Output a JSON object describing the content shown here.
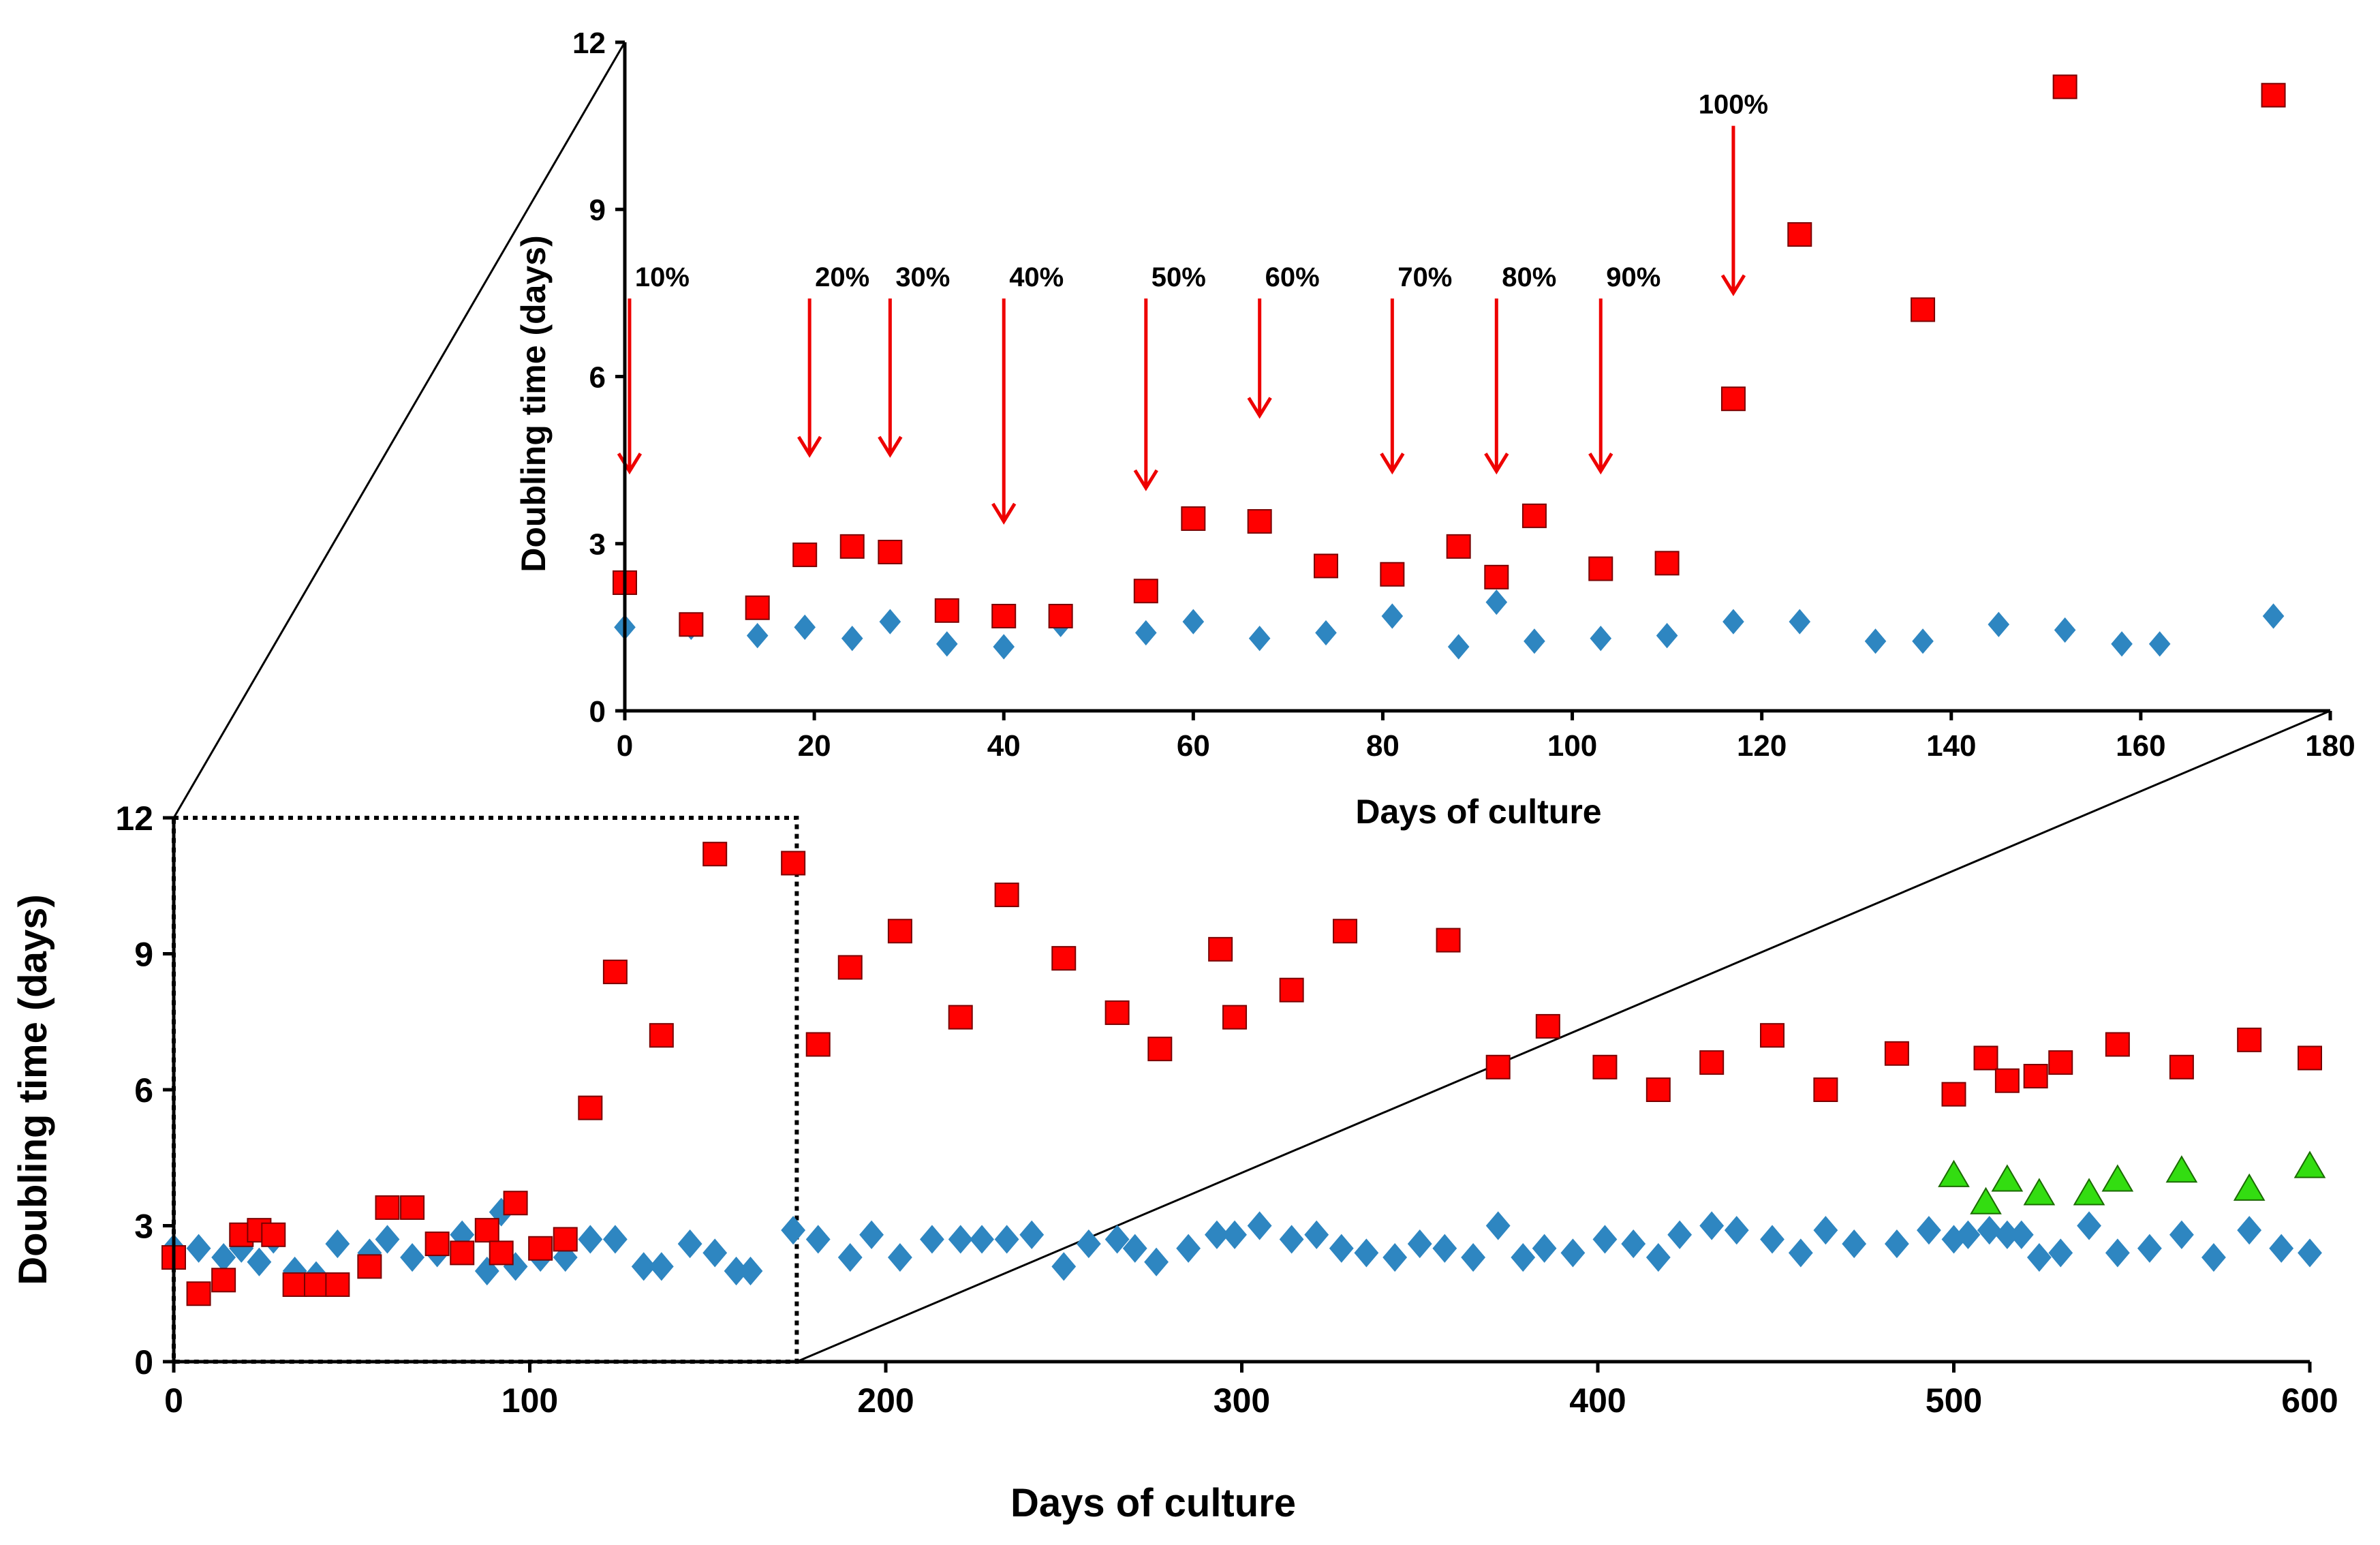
{
  "colors": {
    "series_a": "#2E86C1",
    "series_b": "#FF0000",
    "series_c": "#33DD11",
    "axis": "#000000",
    "arrow": "#EE0000"
  },
  "chart_data": [
    {
      "id": "main",
      "type": "scatter",
      "title": "",
      "xlabel": "Days of culture",
      "ylabel": "Doubling time (days)",
      "xlim": [
        0,
        600
      ],
      "ylim": [
        0,
        12
      ],
      "xticks": [
        0,
        100,
        200,
        300,
        400,
        500,
        600
      ],
      "yticks": [
        0,
        3,
        6,
        9,
        12
      ],
      "grid": false,
      "legend": "none",
      "zoom_box": {
        "x_range": [
          0,
          175
        ],
        "y_range": [
          0,
          12
        ]
      },
      "series": [
        {
          "name": "blue diamonds",
          "marker": "diamond",
          "color": "#2E86C1",
          "points": [
            [
              0,
              2.5
            ],
            [
              7,
              2.5
            ],
            [
              14,
              2.3
            ],
            [
              19,
              2.5
            ],
            [
              24,
              2.2
            ],
            [
              28,
              2.7
            ],
            [
              34,
              2.0
            ],
            [
              40,
              1.9
            ],
            [
              46,
              2.6
            ],
            [
              55,
              2.4
            ],
            [
              60,
              2.7
            ],
            [
              67,
              2.3
            ],
            [
              74,
              2.4
            ],
            [
              81,
              2.8
            ],
            [
              88,
              2.0
            ],
            [
              92,
              3.3
            ],
            [
              96,
              2.1
            ],
            [
              103,
              2.3
            ],
            [
              110,
              2.3
            ],
            [
              117,
              2.7
            ],
            [
              124,
              2.7
            ],
            [
              132,
              2.1
            ],
            [
              137,
              2.1
            ],
            [
              145,
              2.6
            ],
            [
              152,
              2.4
            ],
            [
              158,
              2.0
            ],
            [
              162,
              2.0
            ],
            [
              174,
              2.9
            ],
            [
              181,
              2.7
            ],
            [
              190,
              2.3
            ],
            [
              196,
              2.8
            ],
            [
              204,
              2.3
            ],
            [
              213,
              2.7
            ],
            [
              221,
              2.7
            ],
            [
              227,
              2.7
            ],
            [
              234,
              2.7
            ],
            [
              241,
              2.8
            ],
            [
              250,
              2.1
            ],
            [
              257,
              2.6
            ],
            [
              265,
              2.7
            ],
            [
              270,
              2.5
            ],
            [
              276,
              2.2
            ],
            [
              285,
              2.5
            ],
            [
              293,
              2.8
            ],
            [
              298,
              2.8
            ],
            [
              305,
              3.0
            ],
            [
              314,
              2.7
            ],
            [
              321,
              2.8
            ],
            [
              328,
              2.5
            ],
            [
              335,
              2.4
            ],
            [
              343,
              2.3
            ],
            [
              350,
              2.6
            ],
            [
              357,
              2.5
            ],
            [
              365,
              2.3
            ],
            [
              372,
              3.0
            ],
            [
              379,
              2.3
            ],
            [
              385,
              2.5
            ],
            [
              393,
              2.4
            ],
            [
              402,
              2.7
            ],
            [
              410,
              2.6
            ],
            [
              417,
              2.3
            ],
            [
              423,
              2.8
            ],
            [
              432,
              3.0
            ],
            [
              439,
              2.9
            ],
            [
              449,
              2.7
            ],
            [
              457,
              2.4
            ],
            [
              464,
              2.9
            ],
            [
              472,
              2.6
            ],
            [
              484,
              2.6
            ],
            [
              493,
              2.9
            ],
            [
              500,
              2.7
            ],
            [
              504,
              2.8
            ],
            [
              510,
              2.9
            ],
            [
              515,
              2.8
            ],
            [
              519,
              2.8
            ],
            [
              524,
              2.3
            ],
            [
              530,
              2.4
            ],
            [
              538,
              3.0
            ],
            [
              546,
              2.4
            ],
            [
              555,
              2.5
            ],
            [
              564,
              2.8
            ],
            [
              573,
              2.3
            ],
            [
              583,
              2.9
            ],
            [
              592,
              2.5
            ],
            [
              600,
              2.4
            ]
          ]
        },
        {
          "name": "red squares",
          "marker": "square",
          "color": "#FF0000",
          "points": [
            [
              0,
              2.3
            ],
            [
              7,
              1.5
            ],
            [
              14,
              1.8
            ],
            [
              19,
              2.8
            ],
            [
              24,
              2.9
            ],
            [
              28,
              2.8
            ],
            [
              34,
              1.7
            ],
            [
              40,
              1.7
            ],
            [
              46,
              1.7
            ],
            [
              55,
              2.1
            ],
            [
              60,
              3.4
            ],
            [
              67,
              3.4
            ],
            [
              74,
              2.6
            ],
            [
              81,
              2.4
            ],
            [
              88,
              2.9
            ],
            [
              92,
              2.4
            ],
            [
              96,
              3.5
            ],
            [
              103,
              2.5
            ],
            [
              110,
              2.7
            ],
            [
              117,
              5.6
            ],
            [
              124,
              8.6
            ],
            [
              137,
              7.2
            ],
            [
              152,
              11.2
            ],
            [
              174,
              11.0
            ],
            [
              181,
              7.0
            ],
            [
              190,
              8.7
            ],
            [
              204,
              9.5
            ],
            [
              221,
              7.6
            ],
            [
              234,
              10.3
            ],
            [
              250,
              8.9
            ],
            [
              265,
              7.7
            ],
            [
              277,
              6.9
            ],
            [
              294,
              9.1
            ],
            [
              298,
              7.6
            ],
            [
              314,
              8.2
            ],
            [
              329,
              9.5
            ],
            [
              358,
              9.3
            ],
            [
              372,
              6.5
            ],
            [
              386,
              7.4
            ],
            [
              402,
              6.5
            ],
            [
              417,
              6.0
            ],
            [
              432,
              6.6
            ],
            [
              449,
              7.2
            ],
            [
              464,
              6.0
            ],
            [
              484,
              6.8
            ],
            [
              500,
              5.9
            ],
            [
              509,
              6.7
            ],
            [
              515,
              6.2
            ],
            [
              523,
              6.3
            ],
            [
              530,
              6.6
            ],
            [
              546,
              7.0
            ],
            [
              564,
              6.5
            ],
            [
              583,
              7.1
            ],
            [
              600,
              6.7
            ]
          ]
        },
        {
          "name": "green triangles",
          "marker": "triangle",
          "color": "#33DD11",
          "points": [
            [
              500,
              4.1
            ],
            [
              509,
              3.5
            ],
            [
              515,
              4.0
            ],
            [
              524,
              3.7
            ],
            [
              538,
              3.7
            ],
            [
              546,
              4.0
            ],
            [
              564,
              4.2
            ],
            [
              583,
              3.8
            ],
            [
              600,
              4.3
            ]
          ]
        }
      ]
    },
    {
      "id": "inset",
      "type": "scatter",
      "title": "",
      "xlabel": "Days of culture",
      "ylabel": "Doubling time (days)",
      "xlim": [
        0,
        180
      ],
      "ylim": [
        0,
        12
      ],
      "xticks": [
        0,
        20,
        40,
        60,
        80,
        100,
        120,
        140,
        160,
        180
      ],
      "yticks": [
        0,
        3,
        6,
        9,
        12
      ],
      "grid": false,
      "legend": "none",
      "annotations": [
        {
          "label": "10%",
          "x": 0.5,
          "y_top": 7.4,
          "y_tip": 4.3
        },
        {
          "label": "20%",
          "x": 19.5,
          "y_top": 7.4,
          "y_tip": 4.6
        },
        {
          "label": "30%",
          "x": 28,
          "y_top": 7.4,
          "y_tip": 4.6
        },
        {
          "label": "40%",
          "x": 40,
          "y_top": 7.4,
          "y_tip": 3.4
        },
        {
          "label": "50%",
          "x": 55,
          "y_top": 7.4,
          "y_tip": 4.0
        },
        {
          "label": "60%",
          "x": 67,
          "y_top": 7.4,
          "y_tip": 5.3
        },
        {
          "label": "70%",
          "x": 81,
          "y_top": 7.4,
          "y_tip": 4.3
        },
        {
          "label": "80%",
          "x": 92,
          "y_top": 7.4,
          "y_tip": 4.3
        },
        {
          "label": "90%",
          "x": 103,
          "y_top": 7.4,
          "y_tip": 4.3
        },
        {
          "label": "100%",
          "x": 117,
          "y_top": 10.5,
          "y_tip": 7.5
        }
      ],
      "series": [
        {
          "name": "blue diamonds",
          "marker": "diamond",
          "color": "#2E86C1",
          "points": [
            [
              0,
              1.5
            ],
            [
              7,
              1.5
            ],
            [
              14,
              1.35
            ],
            [
              19,
              1.5
            ],
            [
              24,
              1.3
            ],
            [
              28,
              1.6
            ],
            [
              34,
              1.2
            ],
            [
              40,
              1.15
            ],
            [
              46,
              1.55
            ],
            [
              55,
              1.4
            ],
            [
              60,
              1.6
            ],
            [
              67,
              1.3
            ],
            [
              74,
              1.4
            ],
            [
              81,
              1.7
            ],
            [
              88,
              1.15
            ],
            [
              92,
              1.95
            ],
            [
              96,
              1.25
            ],
            [
              103,
              1.3
            ],
            [
              110,
              1.35
            ],
            [
              117,
              1.6
            ],
            [
              124,
              1.6
            ],
            [
              132,
              1.25
            ],
            [
              137,
              1.25
            ],
            [
              145,
              1.55
            ],
            [
              152,
              1.45
            ],
            [
              158,
              1.2
            ],
            [
              162,
              1.2
            ],
            [
              174,
              1.7
            ]
          ]
        },
        {
          "name": "red squares",
          "marker": "square",
          "color": "#FF0000",
          "points": [
            [
              0,
              2.3
            ],
            [
              7,
              1.55
            ],
            [
              14,
              1.85
            ],
            [
              19,
              2.8
            ],
            [
              24,
              2.95
            ],
            [
              28,
              2.85
            ],
            [
              34,
              1.8
            ],
            [
              40,
              1.7
            ],
            [
              46,
              1.7
            ],
            [
              55,
              2.15
            ],
            [
              60,
              3.45
            ],
            [
              67,
              3.4
            ],
            [
              74,
              2.6
            ],
            [
              81,
              2.45
            ],
            [
              88,
              2.95
            ],
            [
              92,
              2.4
            ],
            [
              96,
              3.5
            ],
            [
              103,
              2.55
            ],
            [
              110,
              2.65
            ],
            [
              117,
              5.6
            ],
            [
              124,
              8.55
            ],
            [
              137,
              7.2
            ],
            [
              152,
              11.2
            ],
            [
              174,
              11.05
            ]
          ]
        }
      ]
    }
  ]
}
